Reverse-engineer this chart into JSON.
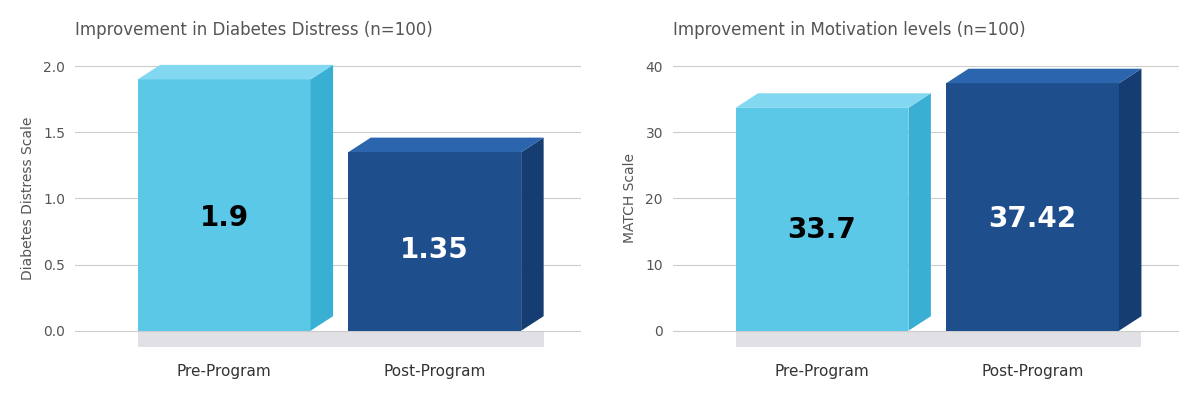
{
  "chart1": {
    "title": "Improvement in Diabetes Distress (n=100)",
    "ylabel": "Diabetes Distress Scale",
    "categories": [
      "Pre-Program",
      "Post-Program"
    ],
    "values": [
      1.9,
      1.35
    ],
    "labels": [
      "1.9",
      "1.35"
    ],
    "bar_colors": [
      "#5BC8E8",
      "#1E4E8C"
    ],
    "bar_top_colors": [
      "#82D8F0",
      "#2A65AD"
    ],
    "bar_side_colors": [
      "#3AAFD4",
      "#163D72"
    ],
    "label_colors": [
      "#000000",
      "#FFFFFF"
    ],
    "ylim": [
      0,
      2.0
    ],
    "yticks": [
      0.0,
      0.5,
      1.0,
      1.5,
      2.0
    ],
    "ytick_labels": [
      "0.0",
      "0.5",
      "1.0",
      "1.5",
      "2.0"
    ]
  },
  "chart2": {
    "title": "Improvement in Motivation levels (n=100)",
    "ylabel": "MATCH Scale",
    "categories": [
      "Pre-Program",
      "Post-Program"
    ],
    "values": [
      33.7,
      37.42
    ],
    "labels": [
      "33.7",
      "37.42"
    ],
    "bar_colors": [
      "#5BC8E8",
      "#1E4E8C"
    ],
    "bar_top_colors": [
      "#82D8F0",
      "#2A65AD"
    ],
    "bar_side_colors": [
      "#3AAFD4",
      "#163D72"
    ],
    "label_colors": [
      "#000000",
      "#FFFFFF"
    ],
    "ylim": [
      0,
      40
    ],
    "yticks": [
      0,
      10,
      20,
      30,
      40
    ],
    "ytick_labels": [
      "0",
      "10",
      "20",
      "30",
      "40"
    ]
  },
  "bg_color": "#FFFFFF",
  "floor_color": "#E0E0E5",
  "title_fontsize": 12,
  "label_fontsize": 20,
  "tick_fontsize": 10,
  "ylabel_fontsize": 10,
  "xtick_fontsize": 11
}
